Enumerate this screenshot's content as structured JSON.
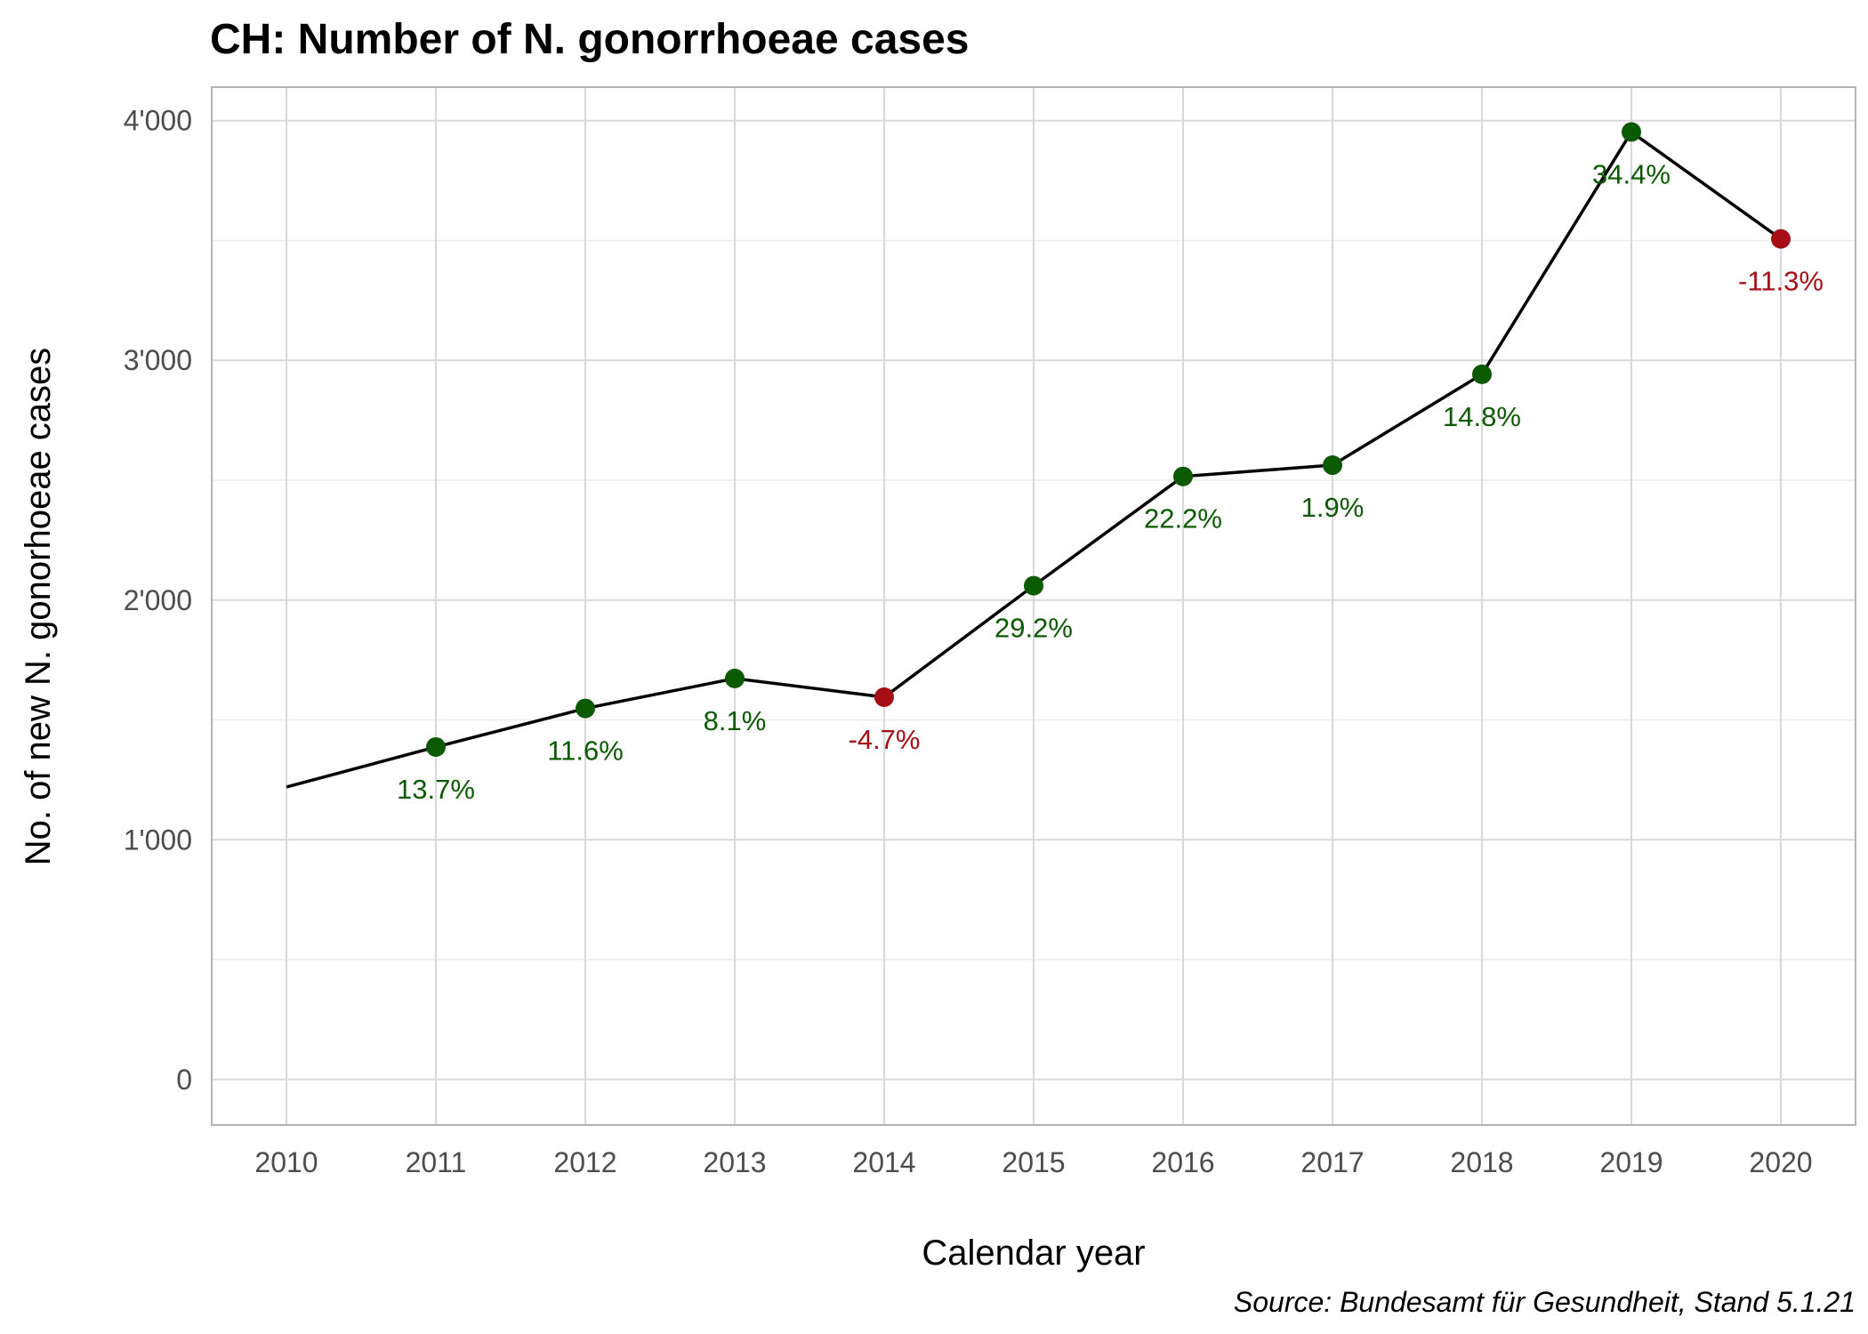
{
  "chart_data": {
    "type": "line",
    "title": "CH: Number of N. gonorrhoeae cases",
    "xlabel": "Calendar year",
    "ylabel": "No. of new N. gonorhoeae cases",
    "caption": "Source: Bundesamt für Gesundheit, Stand 5.1.21",
    "x": [
      2010,
      2011,
      2012,
      2013,
      2014,
      2015,
      2016,
      2017,
      2018,
      2019,
      2020
    ],
    "values": [
      1220,
      1387,
      1548,
      1673,
      1595,
      2060,
      2516,
      2563,
      2942,
      3953,
      3507
    ],
    "labels": [
      "",
      "13.7%",
      "11.6%",
      "8.1%",
      "-4.7%",
      "29.2%",
      "22.2%",
      "1.9%",
      "14.8%",
      "34.4%",
      "-11.3%"
    ],
    "x_ticks": [
      "2010",
      "2011",
      "2012",
      "2013",
      "2014",
      "2015",
      "2016",
      "2017",
      "2018",
      "2019",
      "2020"
    ],
    "y_ticks": [
      0,
      1000,
      2000,
      3000,
      4000
    ],
    "y_tick_labels": [
      "0",
      "1'000",
      "2'000",
      "3'000",
      "4'000"
    ],
    "ylim": [
      -190,
      4140
    ],
    "xlim": [
      2009.5,
      2020.5
    ],
    "grid": true,
    "colors": {
      "line": "#000000",
      "increase": "#0b5a00",
      "decrease": "#a50f15",
      "grid_major": "#d9d9d9",
      "grid_minor": "#ececec",
      "panel_border": "#b3b3b3"
    }
  }
}
